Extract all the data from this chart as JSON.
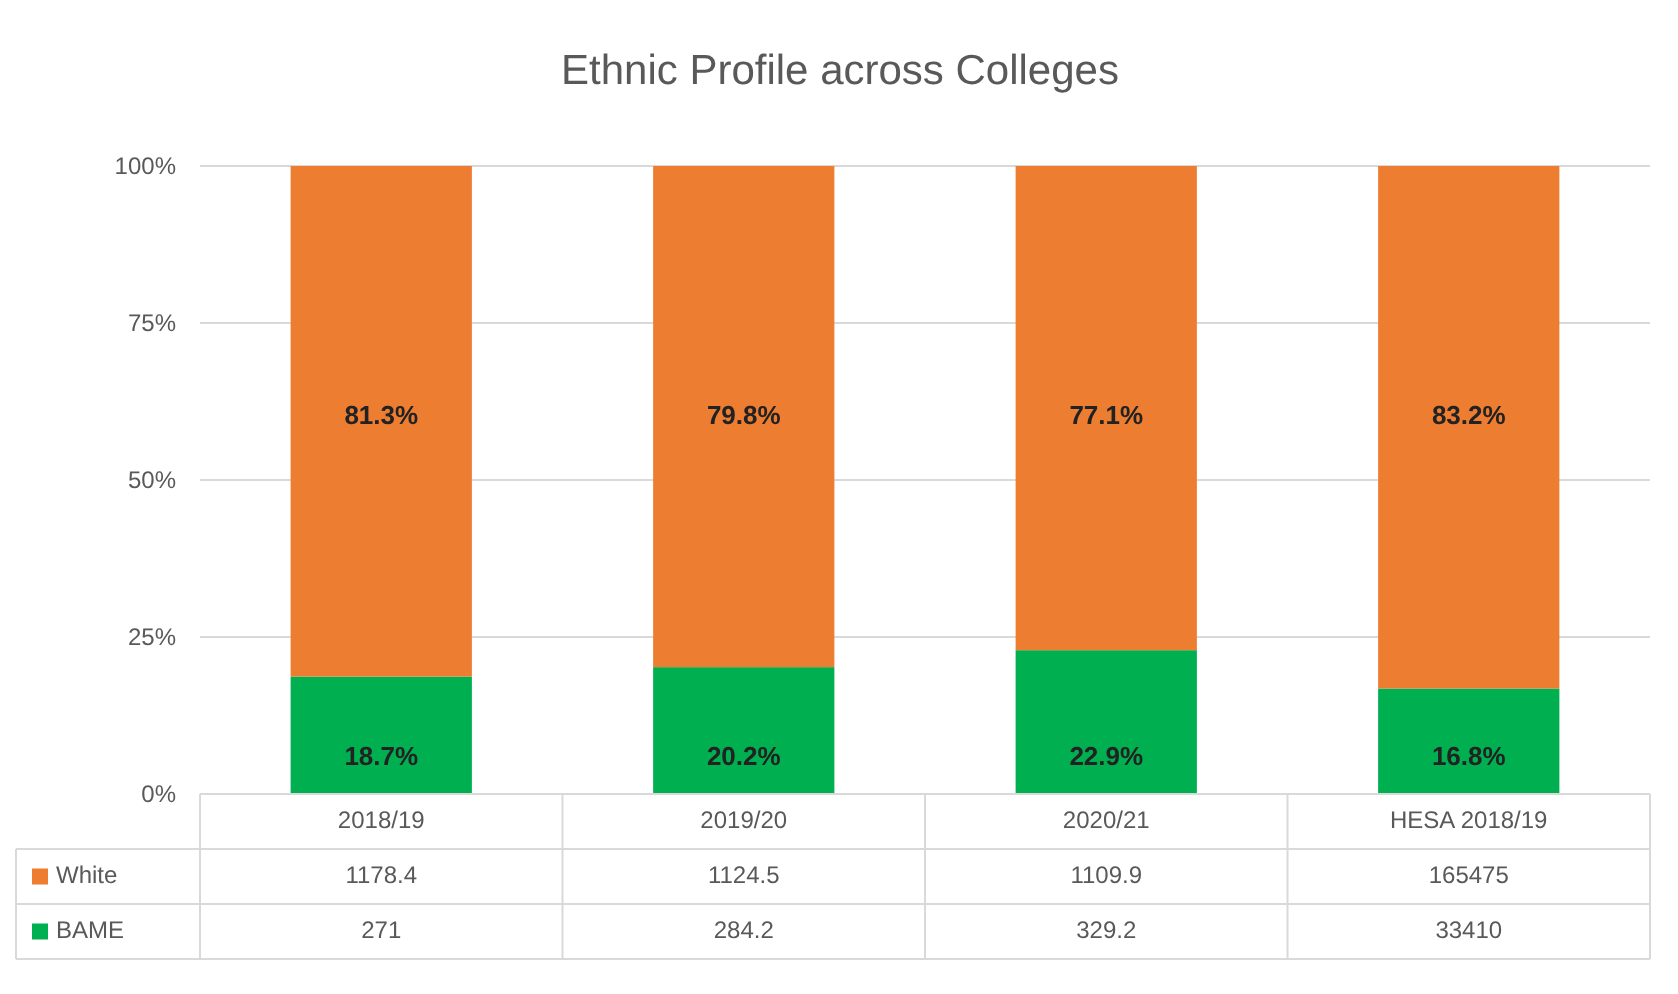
{
  "chart_data": {
    "type": "bar",
    "title": "Ethnic Profile across Colleges",
    "stacked": true,
    "categories": [
      "2018/19",
      "2019/20",
      "2020/21",
      "HESA 2018/19"
    ],
    "series": [
      {
        "name": "BAME",
        "color": "#00b050",
        "values": [
          18.7,
          20.2,
          22.9,
          16.8
        ],
        "value_labels": [
          "18.7%",
          "20.2%",
          "22.9%",
          "16.8%"
        ]
      },
      {
        "name": "White",
        "color": "#ed7d31",
        "values": [
          81.3,
          79.8,
          77.1,
          83.2
        ],
        "value_labels": [
          "81.3%",
          "79.8%",
          "77.1%",
          "83.2%"
        ]
      }
    ],
    "ylim": [
      0,
      100
    ],
    "yticks": [
      {
        "value": 0,
        "label": "0%"
      },
      {
        "value": 25,
        "label": "25%"
      },
      {
        "value": 50,
        "label": "50%"
      },
      {
        "value": 75,
        "label": "75%"
      },
      {
        "value": 100,
        "label": "100%"
      }
    ],
    "grid": "y",
    "legend": "bottom",
    "annotations": [
      "1178.4",
      "1124.5",
      "1109.9",
      "165475",
      "271",
      "284.2",
      "329.2",
      "33410"
    ]
  }
}
